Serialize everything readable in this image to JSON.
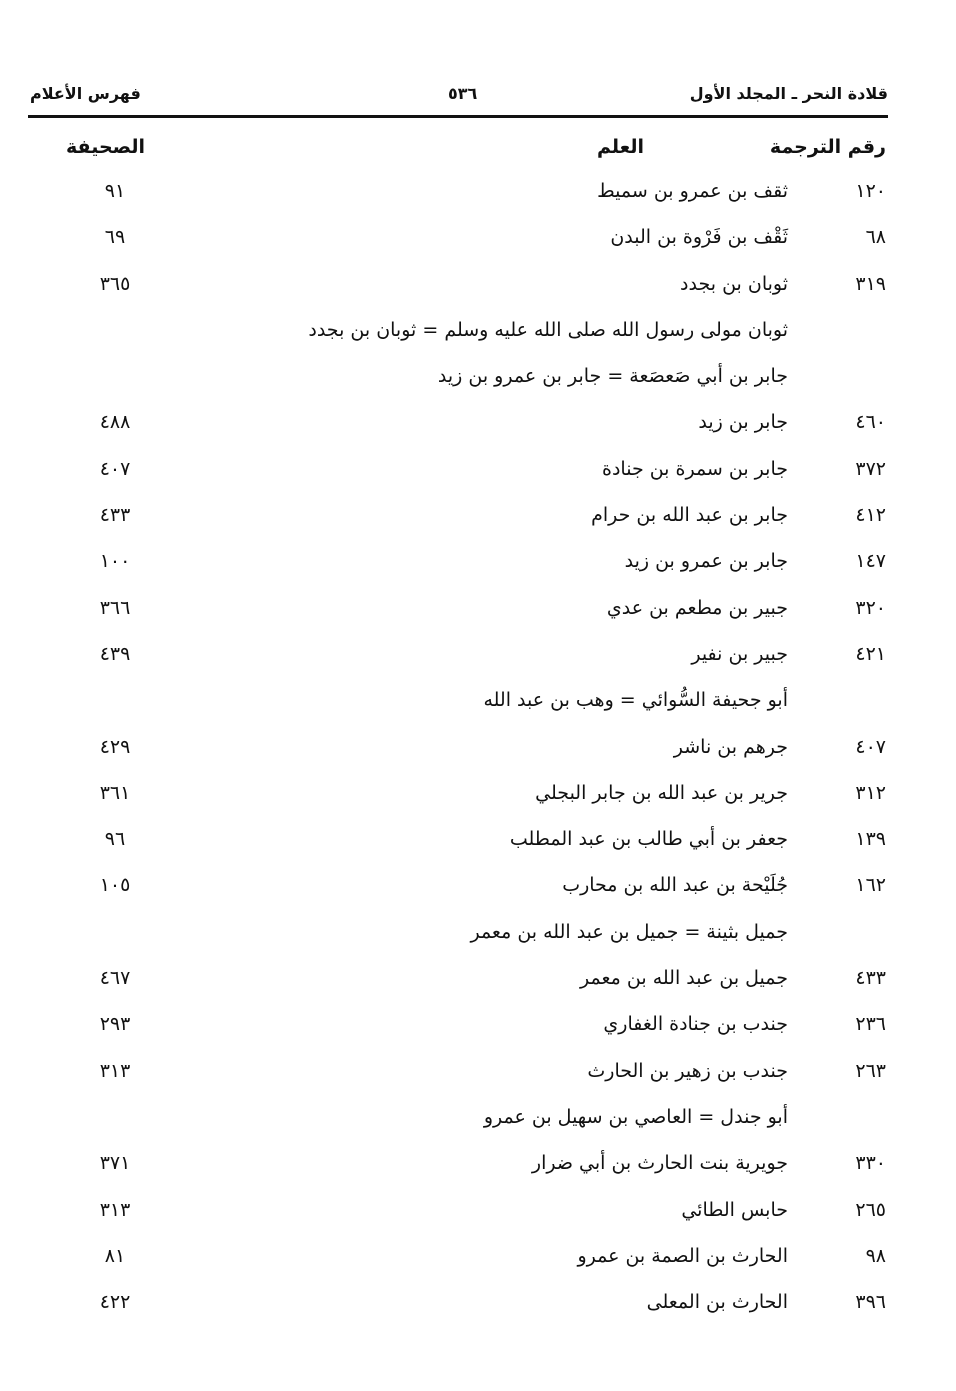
{
  "header": {
    "book_title": "قلادة النحر ـ المجلد الأول",
    "page_number": "٥٣٦",
    "section_title": "فهرس الأعلام"
  },
  "columns": {
    "number": "رقم الترجمة",
    "name": "العلم",
    "page": "الصحيفة"
  },
  "rows": [
    {
      "number": "١٢٠",
      "name": "ثقف بن عمرو بن سميط",
      "page": "٩١"
    },
    {
      "number": "٦٨",
      "name": "ثَقْف بن فَرْوة بن البدن",
      "page": "٦٩"
    },
    {
      "number": "٣١٩",
      "name": "ثوبان بن بجدد",
      "page": "٣٦٥"
    },
    {
      "number": "",
      "name": "ثوبان مولى رسول الله صلى الله عليه وسلم = ثوبان بن بجدد",
      "page": ""
    },
    {
      "number": "",
      "name": "جابر بن أبي صَعصَعة = جابر بن عمرو بن زيد",
      "page": ""
    },
    {
      "number": "٤٦٠",
      "name": "جابر بن زيد",
      "page": "٤٨٨"
    },
    {
      "number": "٣٧٢",
      "name": "جابر بن سمرة بن جنادة",
      "page": "٤٠٧"
    },
    {
      "number": "٤١٢",
      "name": "جابر بن عبد الله بن حرام",
      "page": "٤٣٣"
    },
    {
      "number": "١٤٧",
      "name": "جابر بن عمرو بن زيد",
      "page": "١٠٠"
    },
    {
      "number": "٣٢٠",
      "name": "جبير بن مطعم بن عدي",
      "page": "٣٦٦"
    },
    {
      "number": "٤٢١",
      "name": "جبير بن نفير",
      "page": "٤٣٩"
    },
    {
      "number": "",
      "name": "أبو جحيفة السُّوائي = وهب بن عبد الله",
      "page": ""
    },
    {
      "number": "٤٠٧",
      "name": "جرهم بن ناشر",
      "page": "٤٢٩"
    },
    {
      "number": "٣١٢",
      "name": "جرير بن عبد الله بن جابر البجلي",
      "page": "٣٦١"
    },
    {
      "number": "١٣٩",
      "name": "جعفر بن أبي طالب بن عبد المطلب",
      "page": "٩٦"
    },
    {
      "number": "١٦٢",
      "name": "جُلَيْحة بن عبد الله بن محارب",
      "page": "١٠٥"
    },
    {
      "number": "",
      "name": "جميل بثينة = جميل بن عبد الله بن معمر",
      "page": ""
    },
    {
      "number": "٤٣٣",
      "name": "جميل بن عبد الله بن معمر",
      "page": "٤٦٧"
    },
    {
      "number": "٢٣٦",
      "name": "جندب بن جنادة الغفاري",
      "page": "٢٩٣"
    },
    {
      "number": "٢٦٣",
      "name": "جندب بن زهير بن الحارث",
      "page": "٣١٣"
    },
    {
      "number": "",
      "name": "أبو جندل = العاصي بن سهيل بن عمرو",
      "page": ""
    },
    {
      "number": "٣٣٠",
      "name": "جويرية بنت الحارث بن أبي ضرار",
      "page": "٣٧١"
    },
    {
      "number": "٢٦٥",
      "name": "حابس الطائي",
      "page": "٣١٣"
    },
    {
      "number": "٩٨",
      "name": "الحارث بن الصمة بن عمرو",
      "page": "٨١"
    },
    {
      "number": "٣٩٦",
      "name": "الحارث بن المعلى",
      "page": "٤٢٢"
    }
  ]
}
